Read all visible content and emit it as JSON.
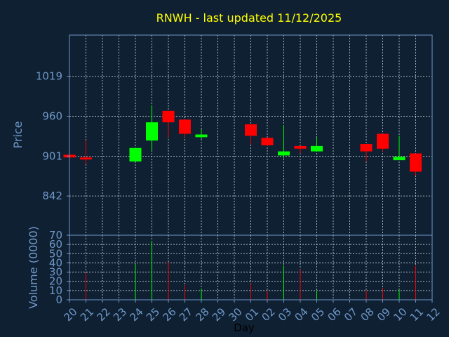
{
  "chart_data": {
    "type": "candlestick",
    "title": "RNWH - last updated 11/12/2025",
    "xlabel": "Day",
    "price_panel": {
      "ylabel": "Price",
      "yticks": [
        842,
        901,
        960,
        1019
      ],
      "ylim": [
        784,
        1080
      ]
    },
    "volume_panel": {
      "ylabel": "Volume (0000)",
      "yticks": [
        0,
        10,
        20,
        30,
        40,
        50,
        60,
        70
      ],
      "ylim": [
        0,
        70
      ]
    },
    "x_tick_labels": [
      "20",
      "21",
      "22",
      "23",
      "24",
      "25",
      "26",
      "27",
      "28",
      "29",
      "30",
      "01",
      "02",
      "03",
      "04",
      "05",
      "06",
      "07",
      "08",
      "09",
      "10",
      "11",
      "12"
    ],
    "grid": true,
    "colors": {
      "up": "#00ff00",
      "down": "#ff0000"
    },
    "candles": [
      {
        "day": "20",
        "open": 903,
        "high": 903,
        "low": 899,
        "close": 899
      },
      {
        "day": "21",
        "open": 899,
        "high": 924,
        "low": 889,
        "close": 896
      },
      {
        "day": "24",
        "open": 893,
        "high": 914,
        "low": 893,
        "close": 913
      },
      {
        "day": "25",
        "open": 924,
        "high": 976,
        "low": 909,
        "close": 951
      },
      {
        "day": "26",
        "open": 968,
        "high": 968,
        "low": 929,
        "close": 951
      },
      {
        "day": "27",
        "open": 955,
        "high": 955,
        "low": 929,
        "close": 934
      },
      {
        "day": "28",
        "open": 929,
        "high": 941,
        "low": 926,
        "close": 933
      },
      {
        "day": "01",
        "open": 948,
        "high": 948,
        "low": 918,
        "close": 931
      },
      {
        "day": "02",
        "open": 928,
        "high": 928,
        "low": 916,
        "close": 917
      },
      {
        "day": "03",
        "open": 902,
        "high": 947,
        "low": 898,
        "close": 908
      },
      {
        "day": "04",
        "open": 916,
        "high": 916,
        "low": 905,
        "close": 912
      },
      {
        "day": "05",
        "open": 908,
        "high": 929,
        "low": 908,
        "close": 916
      },
      {
        "day": "08",
        "open": 919,
        "high": 919,
        "low": 894,
        "close": 908
      },
      {
        "day": "09",
        "open": 934,
        "high": 934,
        "low": 908,
        "close": 912
      },
      {
        "day": "10",
        "open": 895,
        "high": 931,
        "low": 895,
        "close": 900
      },
      {
        "day": "11",
        "open": 905,
        "high": 905,
        "low": 872,
        "close": 878
      }
    ],
    "volumes": [
      {
        "day": "20",
        "value": 0,
        "dir": "down"
      },
      {
        "day": "21",
        "value": 29,
        "dir": "down"
      },
      {
        "day": "24",
        "value": 39,
        "dir": "up"
      },
      {
        "day": "25",
        "value": 64,
        "dir": "up"
      },
      {
        "day": "26",
        "value": 41,
        "dir": "down"
      },
      {
        "day": "27",
        "value": 16,
        "dir": "down"
      },
      {
        "day": "28",
        "value": 12,
        "dir": "up"
      },
      {
        "day": "01",
        "value": 18,
        "dir": "down"
      },
      {
        "day": "02",
        "value": 10,
        "dir": "down"
      },
      {
        "day": "03",
        "value": 37,
        "dir": "up"
      },
      {
        "day": "04",
        "value": 33,
        "dir": "down"
      },
      {
        "day": "05",
        "value": 10,
        "dir": "up"
      },
      {
        "day": "08",
        "value": 10,
        "dir": "down"
      },
      {
        "day": "09",
        "value": 13,
        "dir": "down"
      },
      {
        "day": "10",
        "value": 11,
        "dir": "up"
      },
      {
        "day": "11",
        "value": 37,
        "dir": "down"
      }
    ]
  }
}
